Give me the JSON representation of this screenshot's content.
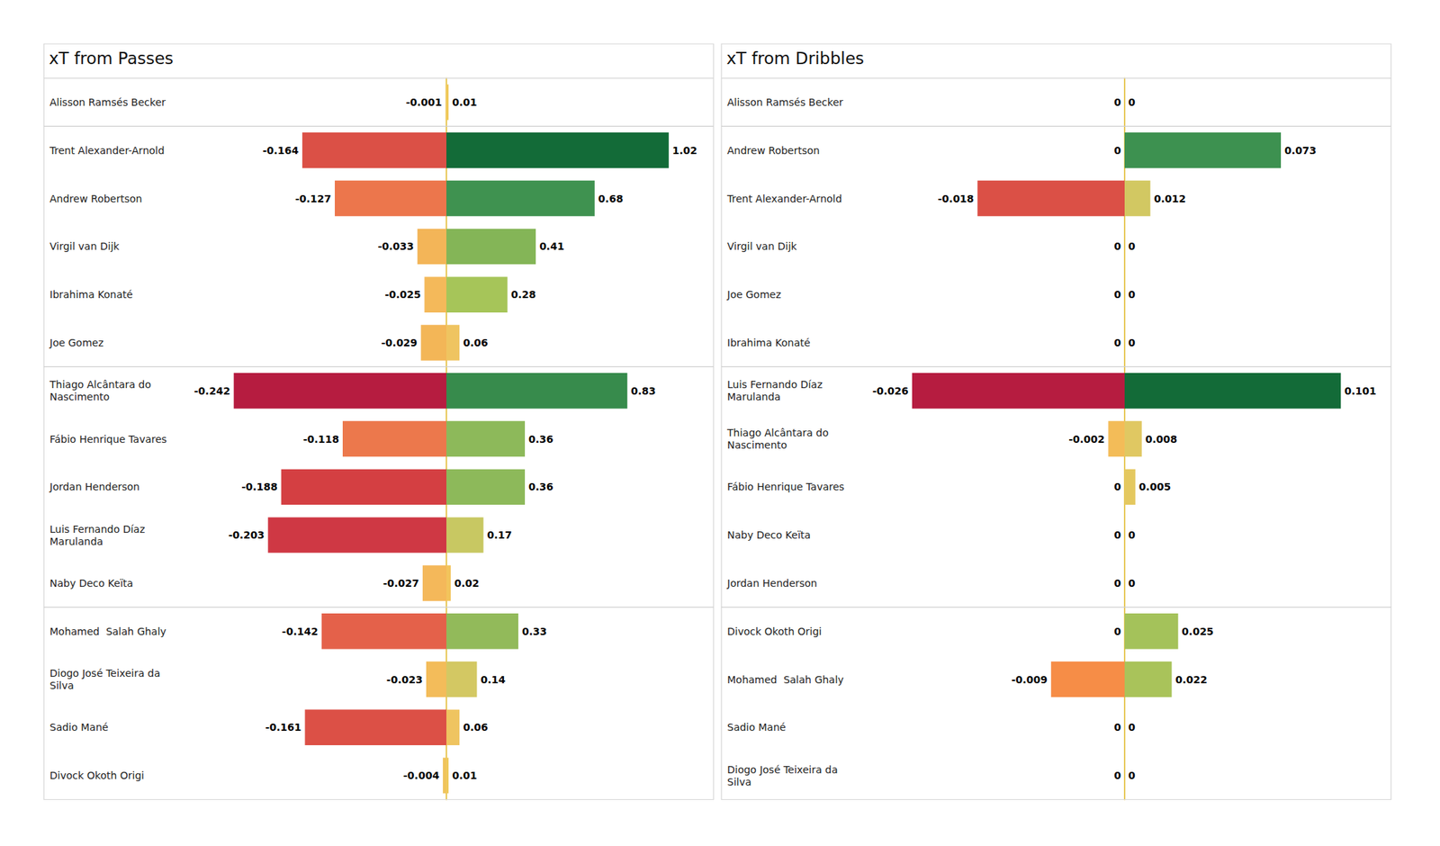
{
  "chart_data": [
    {
      "type": "bar",
      "title": "xT from Passes",
      "orientation": "horizontal",
      "data_labels": true,
      "tick_labels": "y",
      "grid": false,
      "categories": [
        "Alisson Ramsés Becker",
        "Trent Alexander-Arnold",
        "Andrew Robertson",
        "Virgil van Dijk",
        "Ibrahima Konaté",
        "Joe Gomez",
        "Thiago Alcântara do Nascimento",
        "Fábio Henrique Tavares",
        "Jordan Henderson",
        "Luis Fernando Díaz Marulanda",
        "Naby Deco Keïta",
        "Mohamed  Salah Ghaly",
        "Diogo José Teixeira da Silva",
        "Sadio Mané",
        "Divock Okoth Origi"
      ],
      "series": [
        {
          "values": [
            -0.001,
            -0.164,
            -0.127,
            -0.033,
            -0.025,
            -0.029,
            -0.242,
            -0.118,
            -0.188,
            -0.203,
            -0.027,
            -0.142,
            -0.023,
            -0.161,
            -0.004
          ],
          "colors": [
            "#efc85c",
            "#db5046",
            "#ec764c",
            "#f3b558",
            "#f4b95a",
            "#f3b657",
            "#b61c40",
            "#ec784c",
            "#d43f42",
            "#cf3844",
            "#f4b85a",
            "#e4614a",
            "#f3bc5a",
            "#dc5046",
            "#f0c45c"
          ],
          "xlim": [
            -0.254,
            0
          ]
        },
        {
          "values": [
            0.01,
            1.02,
            0.68,
            0.41,
            0.28,
            0.06,
            0.83,
            0.36,
            0.36,
            0.17,
            0.02,
            0.33,
            0.14,
            0.06,
            0.01
          ],
          "colors": [
            "#efca5c",
            "#136b38",
            "#3f9250",
            "#84b557",
            "#a6c559",
            "#efc460",
            "#378b4c",
            "#8db95a",
            "#8db95a",
            "#c8c862",
            "#f2c45c",
            "#92ba5a",
            "#d3c863",
            "#efc460",
            "#efca5c"
          ],
          "xlim": [
            0,
            1.09
          ]
        }
      ]
    },
    {
      "type": "bar",
      "title": "xT from Dribbles",
      "orientation": "horizontal",
      "data_labels": true,
      "tick_labels": "y",
      "grid": false,
      "categories": [
        "Alisson Ramsés Becker",
        "Andrew Robertson",
        "Trent Alexander-Arnold",
        "Virgil van Dijk",
        "Joe Gomez",
        "Ibrahima Konaté",
        "Luis Fernando Díaz Marulanda",
        "Thiago Alcântara do Nascimento",
        "Fábio Henrique Tavares",
        "Naby Deco Keïta",
        "Jordan Henderson",
        "Divock Okoth Origi",
        "Mohamed  Salah Ghaly",
        "Sadio Mané",
        "Diogo José Teixeira da Silva"
      ],
      "series": [
        {
          "values": [
            0,
            0,
            -0.018,
            0,
            0,
            0,
            -0.026,
            -0.002,
            0,
            0,
            0,
            0,
            -0.009,
            0,
            0
          ],
          "colors": [
            "#e8c95a",
            "#e8c95a",
            "#db5046",
            "#e8c95a",
            "#e8c95a",
            "#e8c95a",
            "#b61c40",
            "#f3bc58",
            "#e8c95a",
            "#e8c95a",
            "#e8c95a",
            "#e8c95a",
            "#f68d47",
            "#e8c95a",
            "#e8c95a"
          ],
          "xlim": [
            -0.0273,
            0
          ]
        },
        {
          "values": [
            0,
            0.073,
            0.012,
            0,
            0,
            0,
            0.101,
            0.008,
            0.005,
            0,
            0,
            0.025,
            0.022,
            0,
            0
          ],
          "colors": [
            "#e8c95a",
            "#3d9150",
            "#d2c862",
            "#e8c95a",
            "#e8c95a",
            "#e8c95a",
            "#136b38",
            "#e0c862",
            "#e4c85f",
            "#e8c95a",
            "#e8c95a",
            "#a4c25a",
            "#a9c35a",
            "#e8c95a",
            "#e8c95a"
          ],
          "xlim": [
            0,
            0.111
          ]
        }
      ]
    }
  ]
}
